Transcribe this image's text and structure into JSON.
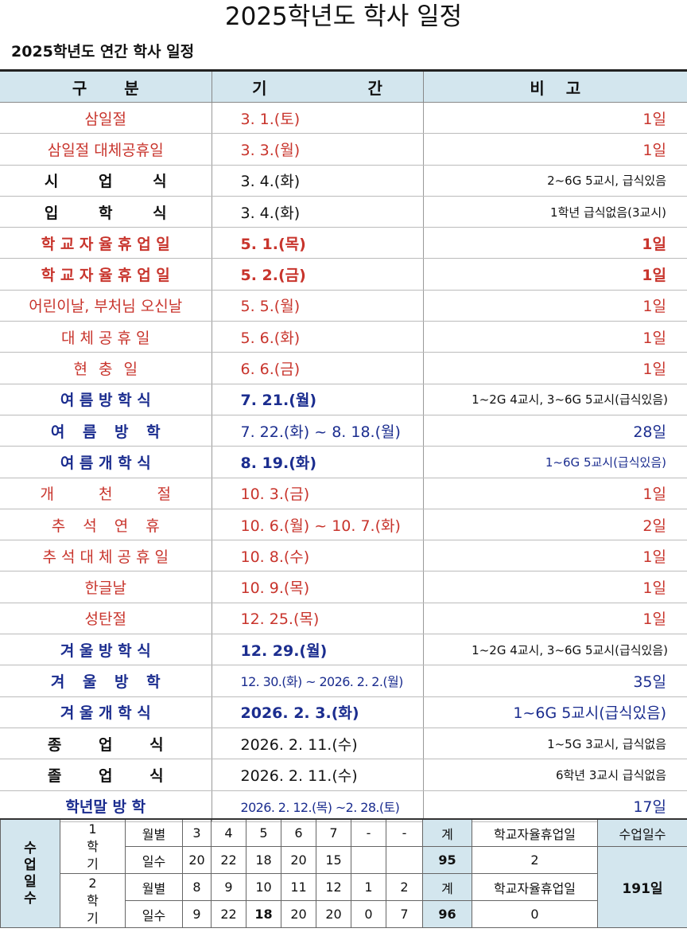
{
  "title": "2025학년도 학사 일정",
  "subtitle": "2025학년도 연간 학사 일정",
  "headers": {
    "category": "구 분",
    "period": "기 간",
    "note": "비 고"
  },
  "events": [
    {
      "name": "삼일절",
      "period": "3. 1.(토)",
      "note": "1일"
    },
    {
      "name": "삼일절 대체공휴일",
      "period": "3. 3.(월)",
      "note": "1일"
    },
    {
      "name": "시 업 식",
      "period": "3. 4.(화)",
      "note": "2~6G 5교시, 급식있음"
    },
    {
      "name": "입 학 식",
      "period": "3. 4.(화)",
      "note": "1학년 급식없음(3교시)"
    },
    {
      "name": "학 교 자 율 휴 업 일",
      "period": "5. 1.(목)",
      "note": "1일"
    },
    {
      "name": "학 교 자 율 휴 업 일",
      "period": "5. 2.(금)",
      "note": "1일"
    },
    {
      "name": "어린이날, 부처님 오신날",
      "period": "5. 5.(월)",
      "note": "1일"
    },
    {
      "name": "대 체 공 휴 일",
      "period": "5. 6.(화)",
      "note": "1일"
    },
    {
      "name": "현 충 일",
      "period": "6. 6.(금)",
      "note": "1일"
    },
    {
      "name": "여 름 방 학 식",
      "period": "7. 21.(월)",
      "note": "1~2G 4교시, 3~6G 5교시(급식있음)"
    },
    {
      "name": "여 름 방 학",
      "period": "7. 22.(화) ~ 8. 18.(월)",
      "note": "28일"
    },
    {
      "name": "여 름 개 학 식",
      "period": "8. 19.(화)",
      "note": "1~6G 5교시(급식있음)"
    },
    {
      "name": "개 천 절",
      "period": "10. 3.(금)",
      "note": "1일"
    },
    {
      "name": "추 석 연 휴",
      "period": "10. 6.(월) ~ 10. 7.(화)",
      "note": "2일"
    },
    {
      "name": "추 석 대 체 공 휴 일",
      "period": "10. 8.(수)",
      "note": "1일"
    },
    {
      "name": "한글날",
      "period": "10. 9.(목)",
      "note": "1일"
    },
    {
      "name": "성탄절",
      "period": "12. 25.(목)",
      "note": "1일"
    },
    {
      "name": "겨 울 방 학 식",
      "period": "12. 29.(월)",
      "note": "1~2G 4교시, 3~6G 5교시(급식있음)"
    },
    {
      "name": "겨 울 방 학",
      "period": "12. 30.(화) ~ 2026. 2. 2.(월)",
      "note": "35일"
    },
    {
      "name": "겨 울 개 학 식",
      "period": "2026. 2. 3.(화)",
      "note": "1~6G 5교시(급식있음)"
    },
    {
      "name": "종 업 식",
      "period": "2026. 2. 11.(수)",
      "note": "1~5G 3교시, 급식없음"
    },
    {
      "name": "졸 업 식",
      "period": "2026. 2. 11.(수)",
      "note": "6학년 3교시 급식없음"
    },
    {
      "name": "학년말 방 학",
      "period": "2026. 2. 12.(목) ~2. 28.(토)",
      "note": "17일"
    }
  ],
  "summary": {
    "label": "수업일수",
    "sem1": {
      "name": "1 학기",
      "month_label": "월별",
      "days_label": "일수",
      "months": [
        "3",
        "4",
        "5",
        "6",
        "7",
        "-",
        "-"
      ],
      "days": [
        "20",
        "22",
        "18",
        "20",
        "15",
        "",
        ""
      ],
      "total_label": "계",
      "total": "95",
      "closure_label": "학교자율휴업일",
      "closure": "2"
    },
    "sem2": {
      "name": "2 학기",
      "month_label": "월별",
      "days_label": "일수",
      "months": [
        "8",
        "9",
        "10",
        "11",
        "12",
        "1",
        "2"
      ],
      "days": [
        "9",
        "22",
        "18",
        "20",
        "20",
        "0",
        "7"
      ],
      "total_label": "계",
      "total": "96",
      "closure_label": "학교자율휴업일",
      "closure": "0"
    },
    "school_days_label": "수업일수",
    "school_days": "191일"
  },
  "colors": {
    "red": "#c8342c",
    "blue": "#1b2d8f",
    "header_bg": "#d3e6ee"
  }
}
